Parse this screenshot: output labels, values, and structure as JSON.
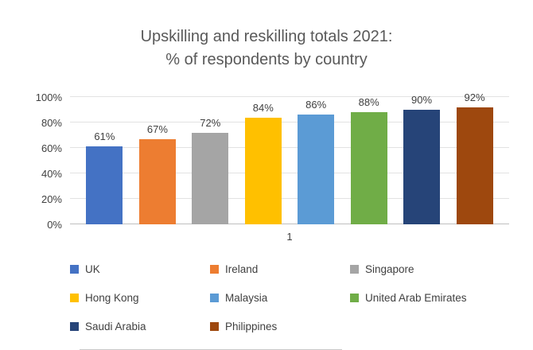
{
  "title": {
    "line1": "Upskilling and reskilling totals 2021:",
    "line2": "% of respondents by country"
  },
  "chart_data": {
    "type": "bar",
    "title": "Upskilling and reskilling totals 2021: % of respondents by country",
    "categories": [
      "1"
    ],
    "x_category_label": "1",
    "series": [
      {
        "name": "UK",
        "value": 61,
        "label": "61%",
        "color": "#4472C4"
      },
      {
        "name": "Ireland",
        "value": 67,
        "label": "67%",
        "color": "#ED7D31"
      },
      {
        "name": "Singapore",
        "value": 72,
        "label": "72%",
        "color": "#A5A5A5"
      },
      {
        "name": "Hong Kong",
        "value": 84,
        "label": "84%",
        "color": "#FFC000"
      },
      {
        "name": "Malaysia",
        "value": 86,
        "label": "86%",
        "color": "#5B9BD5"
      },
      {
        "name": "United Arab Emirates",
        "value": 88,
        "label": "88%",
        "color": "#70AD47"
      },
      {
        "name": "Saudi Arabia",
        "value": 90,
        "label": "90%",
        "color": "#264478"
      },
      {
        "name": "Philippines",
        "value": 92,
        "label": "92%",
        "color": "#9E480E"
      }
    ],
    "y_ticks": [
      "0%",
      "20%",
      "40%",
      "60%",
      "80%",
      "100%"
    ],
    "ylim": [
      0,
      100
    ],
    "grid": true,
    "legend_position": "bottom"
  }
}
